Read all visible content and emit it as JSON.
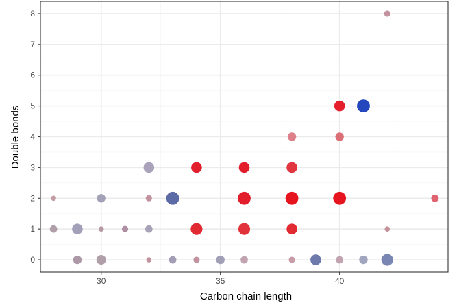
{
  "chart_data": {
    "type": "scatter",
    "title": "",
    "xlabel": "Carbon chain length",
    "ylabel": "Double bonds",
    "xlim": [
      27.45,
      44.55
    ],
    "ylim": [
      -0.4,
      8.4
    ],
    "x_ticks": [
      30,
      35,
      40
    ],
    "x_tick_labels": [
      "30",
      "35",
      "40"
    ],
    "y_ticks": [
      0,
      1,
      2,
      3,
      4,
      5,
      6,
      7,
      8
    ],
    "y_tick_labels": [
      "0",
      "1",
      "2",
      "3",
      "4",
      "5",
      "6",
      "7",
      "8"
    ],
    "x_minor_gridlines": [
      27.5,
      32.5,
      37.5,
      42.5
    ],
    "y_minor_gridlines": [
      0.5,
      1.5,
      2.5,
      3.5,
      4.5,
      5.5,
      6.5,
      7.5
    ],
    "grid": true,
    "legend": "none",
    "colors": {
      "background": "#ffffff",
      "grid_major": "#ebebeb",
      "grid_minor": "#f5f5f5",
      "panel_border": "#333333",
      "tick_label": "#4d4d4d",
      "axis_title": "#000000"
    },
    "points": [
      {
        "x": 42,
        "y": 8,
        "size": 1,
        "color": "#c2939f"
      },
      {
        "x": 40,
        "y": 5,
        "size": 3,
        "color": "#e51f2c"
      },
      {
        "x": 41,
        "y": 5,
        "size": 4,
        "color": "#2447bd"
      },
      {
        "x": 38,
        "y": 4,
        "size": 2,
        "color": "#dd808a"
      },
      {
        "x": 40,
        "y": 4,
        "size": 2,
        "color": "#dc6f76"
      },
      {
        "x": 32,
        "y": 3,
        "size": 3,
        "color": "#aaa2bb"
      },
      {
        "x": 34,
        "y": 3,
        "size": 3,
        "color": "#e21d2c"
      },
      {
        "x": 36,
        "y": 3,
        "size": 3,
        "color": "#e21d2c"
      },
      {
        "x": 38,
        "y": 3,
        "size": 3,
        "color": "#e1353f"
      },
      {
        "x": 28,
        "y": 2,
        "size": 0.5,
        "color": "#c29da6"
      },
      {
        "x": 30,
        "y": 2,
        "size": 2,
        "color": "#a3a1b8"
      },
      {
        "x": 32,
        "y": 2,
        "size": 1,
        "color": "#c2939f"
      },
      {
        "x": 33,
        "y": 2,
        "size": 4,
        "color": "#5c6aa6"
      },
      {
        "x": 36,
        "y": 2,
        "size": 4,
        "color": "#e21d2c"
      },
      {
        "x": 38,
        "y": 2,
        "size": 4,
        "color": "#e5141e"
      },
      {
        "x": 40,
        "y": 2,
        "size": 4,
        "color": "#e5141e"
      },
      {
        "x": 44,
        "y": 2,
        "size": 1.5,
        "color": "#df6370"
      },
      {
        "x": 28,
        "y": 1,
        "size": 1.5,
        "color": "#b09ea9"
      },
      {
        "x": 29,
        "y": 1,
        "size": 3,
        "color": "#a1a0b8"
      },
      {
        "x": 30,
        "y": 1,
        "size": 0.5,
        "color": "#b798a5"
      },
      {
        "x": 31,
        "y": 1,
        "size": 1,
        "color": "#ae8ea1"
      },
      {
        "x": 32,
        "y": 1,
        "size": 1.5,
        "color": "#a7a2b8"
      },
      {
        "x": 34,
        "y": 1,
        "size": 3.5,
        "color": "#e22a32"
      },
      {
        "x": 36,
        "y": 1,
        "size": 3.5,
        "color": "#e2323a"
      },
      {
        "x": 38,
        "y": 1,
        "size": 3,
        "color": "#e22a32"
      },
      {
        "x": 42,
        "y": 1,
        "size": 0.5,
        "color": "#c4909a"
      },
      {
        "x": 29,
        "y": 0,
        "size": 2,
        "color": "#ad98a8"
      },
      {
        "x": 30,
        "y": 0,
        "size": 2.5,
        "color": "#b09ea9"
      },
      {
        "x": 32,
        "y": 0,
        "size": 0.5,
        "color": "#c2939f"
      },
      {
        "x": 33,
        "y": 0,
        "size": 1.5,
        "color": "#a39db6"
      },
      {
        "x": 34,
        "y": 0,
        "size": 1,
        "color": "#c2939f"
      },
      {
        "x": 35,
        "y": 0,
        "size": 2,
        "color": "#9fa0b6"
      },
      {
        "x": 36,
        "y": 0,
        "size": 1.5,
        "color": "#c2a4b0"
      },
      {
        "x": 38,
        "y": 0,
        "size": 1,
        "color": "#c99ba6"
      },
      {
        "x": 39,
        "y": 0,
        "size": 3,
        "color": "#6d7aab"
      },
      {
        "x": 40,
        "y": 0,
        "size": 1.5,
        "color": "#c2a4b0"
      },
      {
        "x": 41,
        "y": 0,
        "size": 2,
        "color": "#a1a6be"
      },
      {
        "x": 42,
        "y": 0,
        "size": 3.5,
        "color": "#7985b2"
      }
    ]
  }
}
